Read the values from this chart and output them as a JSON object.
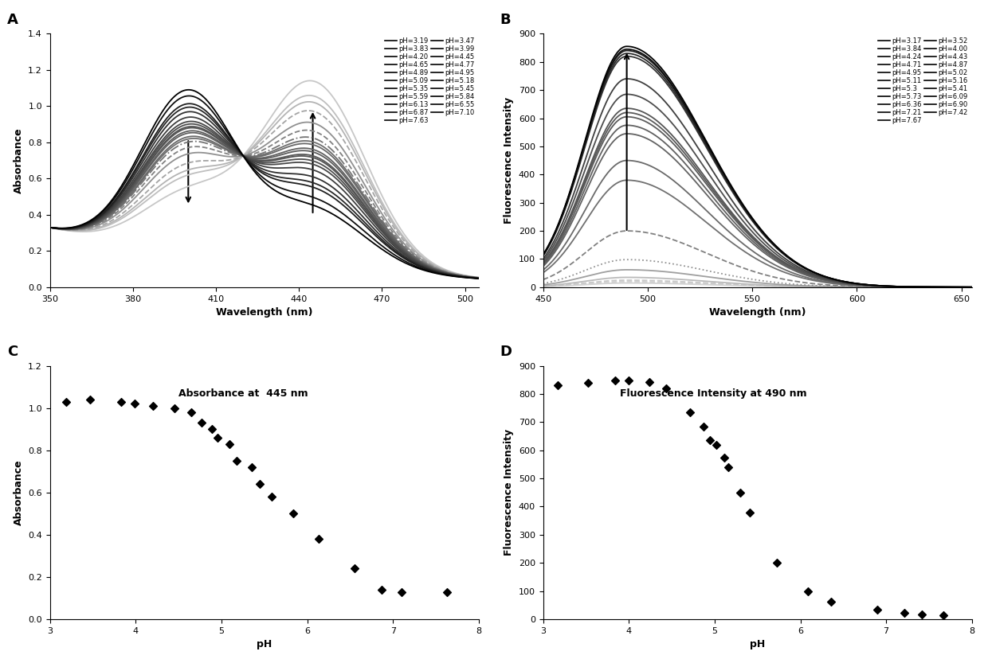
{
  "panel_A": {
    "title": "A",
    "xlabel": "Wavelength (nm)",
    "ylabel": "Absorbance",
    "xlim": [
      350,
      505
    ],
    "ylim": [
      0,
      1.4
    ],
    "xticks": [
      350,
      380,
      410,
      440,
      470,
      500
    ],
    "yticks": [
      0,
      0.2,
      0.4,
      0.6,
      0.8,
      1.0,
      1.2,
      1.4
    ],
    "legend_col1": [
      "pH=3.19",
      "pH=3.83",
      "pH=4.20",
      "pH=4.65",
      "pH=4.89",
      "pH=5.09",
      "pH=5.35",
      "pH=5.59",
      "pH=6.13",
      "pH=6.87",
      "pH=7.63"
    ],
    "legend_col2": [
      "pH=3.47",
      "pH=3.99",
      "pH=4.45",
      "pH=4.77",
      "pH=4.95",
      "pH=5.18",
      "pH=5.45",
      "pH=5.84",
      "pH=6.55",
      "pH=7.10"
    ],
    "ph_values": [
      3.19,
      3.47,
      3.83,
      3.99,
      4.2,
      4.45,
      4.65,
      4.77,
      4.89,
      4.95,
      5.09,
      5.18,
      5.35,
      5.45,
      5.59,
      5.84,
      6.13,
      6.55,
      6.87,
      7.1,
      7.63
    ]
  },
  "panel_B": {
    "title": "B",
    "xlabel": "Wavelength (nm)",
    "ylabel": "Fluorescence Intensity",
    "xlim": [
      450,
      655
    ],
    "ylim": [
      0,
      900
    ],
    "xticks": [
      450,
      500,
      550,
      600,
      650
    ],
    "yticks": [
      0,
      100,
      200,
      300,
      400,
      500,
      600,
      700,
      800,
      900
    ],
    "legend_col1": [
      "pH=3.17",
      "pH=3.84",
      "pH=4.24",
      "pH=4.71",
      "pH=4.95",
      "pH=5.11",
      "pH=5.3",
      "pH=5.73",
      "pH=6.36",
      "pH=7.21",
      "pH=7.67"
    ],
    "legend_col2": [
      "pH=3.52",
      "pH=4.00",
      "pH=4.43",
      "pH=4.87",
      "pH=5.02",
      "pH=5.16",
      "pH=5.41",
      "pH=6.09",
      "pH=6.90",
      "pH=7.42"
    ],
    "ph_values": [
      3.17,
      3.52,
      3.84,
      4.0,
      4.24,
      4.43,
      4.71,
      4.87,
      4.95,
      5.02,
      5.11,
      5.16,
      5.3,
      5.41,
      5.73,
      6.09,
      6.36,
      6.9,
      7.21,
      7.42,
      7.67
    ],
    "amplitudes": [
      855,
      845,
      840,
      830,
      820,
      740,
      685,
      635,
      620,
      605,
      575,
      545,
      450,
      380,
      200,
      98,
      62,
      35,
      25,
      20,
      15
    ]
  },
  "panel_C": {
    "title": "C",
    "annotation": "Absorbance at  445 nm",
    "xlabel": "pH",
    "ylabel": "Absorbance",
    "xlim": [
      3,
      8
    ],
    "ylim": [
      0,
      1.2
    ],
    "xticks": [
      3,
      4,
      5,
      6,
      7,
      8
    ],
    "yticks": [
      0,
      0.2,
      0.4,
      0.6,
      0.8,
      1.0,
      1.2
    ],
    "ph_data": [
      3.19,
      3.47,
      3.83,
      3.99,
      4.2,
      4.45,
      4.65,
      4.77,
      4.89,
      4.95,
      5.09,
      5.18,
      5.35,
      5.45,
      5.59,
      5.84,
      6.13,
      6.55,
      6.87,
      7.1,
      7.63
    ],
    "abs_data": [
      1.03,
      1.04,
      1.03,
      1.02,
      1.01,
      1.0,
      0.98,
      0.93,
      0.9,
      0.86,
      0.83,
      0.75,
      0.72,
      0.64,
      0.58,
      0.5,
      0.38,
      0.24,
      0.14,
      0.13,
      0.13
    ]
  },
  "panel_D": {
    "title": "D",
    "annotation": "Fluorescence Intensity at 490 nm",
    "xlabel": "pH",
    "ylabel": "Fluorescence Intensity",
    "xlim": [
      3,
      8
    ],
    "ylim": [
      0,
      900
    ],
    "xticks": [
      3,
      4,
      5,
      6,
      7,
      8
    ],
    "yticks": [
      0,
      100,
      200,
      300,
      400,
      500,
      600,
      700,
      800,
      900
    ],
    "ph_data": [
      3.17,
      3.52,
      3.84,
      4.0,
      4.24,
      4.43,
      4.71,
      4.87,
      4.95,
      5.02,
      5.11,
      5.16,
      5.3,
      5.41,
      5.73,
      6.09,
      6.36,
      6.9,
      7.21,
      7.42,
      7.67
    ],
    "fi_data": [
      830,
      840,
      848,
      848,
      843,
      820,
      735,
      685,
      635,
      620,
      575,
      540,
      450,
      380,
      200,
      98,
      62,
      35,
      22,
      17,
      14
    ]
  },
  "background_color": "#ffffff"
}
